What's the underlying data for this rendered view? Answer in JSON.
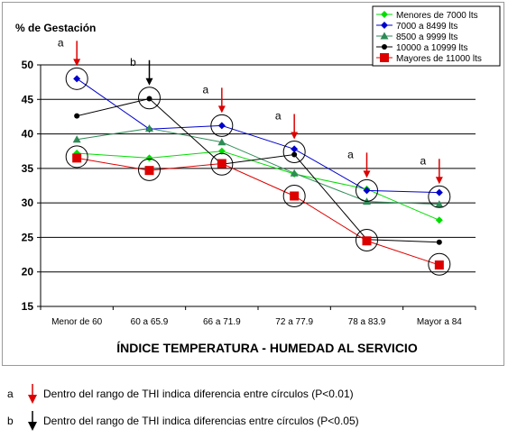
{
  "chart_data": {
    "type": "line",
    "ylabel": "% de Gestación",
    "xlabel": "ÍNDICE TEMPERATURA - HUMEDAD AL SERVICIO",
    "categories": [
      "Menor de 60",
      "60 a 65.9",
      "66 a 71.9",
      "72 a 77.9",
      "78 a 83.9",
      "Mayor a 84"
    ],
    "ylim": [
      15,
      50
    ],
    "yticks": [
      "15",
      "20",
      "25",
      "30",
      "35",
      "40",
      "45",
      "50"
    ],
    "grid": true,
    "legend_position": "top-right",
    "series": [
      {
        "name": "Menores de 7000 lts",
        "color": "#00dd00",
        "marker": "diamond",
        "values": [
          37.2,
          36.5,
          37.5,
          34.2,
          32.0,
          27.5
        ]
      },
      {
        "name": "7000 a 8499 lts",
        "color": "#0000cc",
        "marker": "diamond",
        "values": [
          48.0,
          40.7,
          41.2,
          37.8,
          31.8,
          31.5
        ]
      },
      {
        "name": "8500 a 9999 lts",
        "color": "#2e8b57",
        "marker": "triangle",
        "values": [
          39.2,
          40.8,
          38.8,
          34.3,
          30.2,
          29.8
        ]
      },
      {
        "name": "10000 a 10999 lts",
        "color": "#000000",
        "marker": "circle",
        "values": [
          42.6,
          45.1,
          35.6,
          37.0,
          24.7,
          24.3
        ]
      },
      {
        "name": "Mayores de 11000 lts",
        "color": "#dd0000",
        "marker": "square",
        "values": [
          36.5,
          34.7,
          35.7,
          31.0,
          24.5,
          21.0
        ]
      }
    ],
    "annotations": [
      {
        "category": "Menor de 60",
        "letter": "a",
        "arrow_color": "#dd0000",
        "circled": [
          48.0,
          36.7
        ]
      },
      {
        "category": "60 a 65.9",
        "letter": "b",
        "arrow_color": "#000000",
        "circled": [
          45.2,
          34.8
        ]
      },
      {
        "category": "66 a 71.9",
        "letter": "a",
        "arrow_color": "#dd0000",
        "circled": [
          41.2,
          35.6
        ]
      },
      {
        "category": "72 a 77.9",
        "letter": "a",
        "arrow_color": "#dd0000",
        "circled": [
          37.4,
          31.0
        ]
      },
      {
        "category": "78 a 83.9",
        "letter": "a",
        "arrow_color": "#dd0000",
        "circled": [
          31.8,
          24.6
        ]
      },
      {
        "category": "Mayor a 84",
        "letter": "a",
        "arrow_color": "#dd0000",
        "circled": [
          30.9,
          21.1
        ]
      }
    ]
  },
  "notes": [
    {
      "letter": "a",
      "arrow_color": "#dd0000",
      "text": "Dentro  del rango de THI indica diferencia  entre círculos (P<0.01)"
    },
    {
      "letter": "b",
      "arrow_color": "#000000",
      "text": "Dentro  del rango de THI indica diferencias  entre círculos (P<0.05)"
    }
  ]
}
